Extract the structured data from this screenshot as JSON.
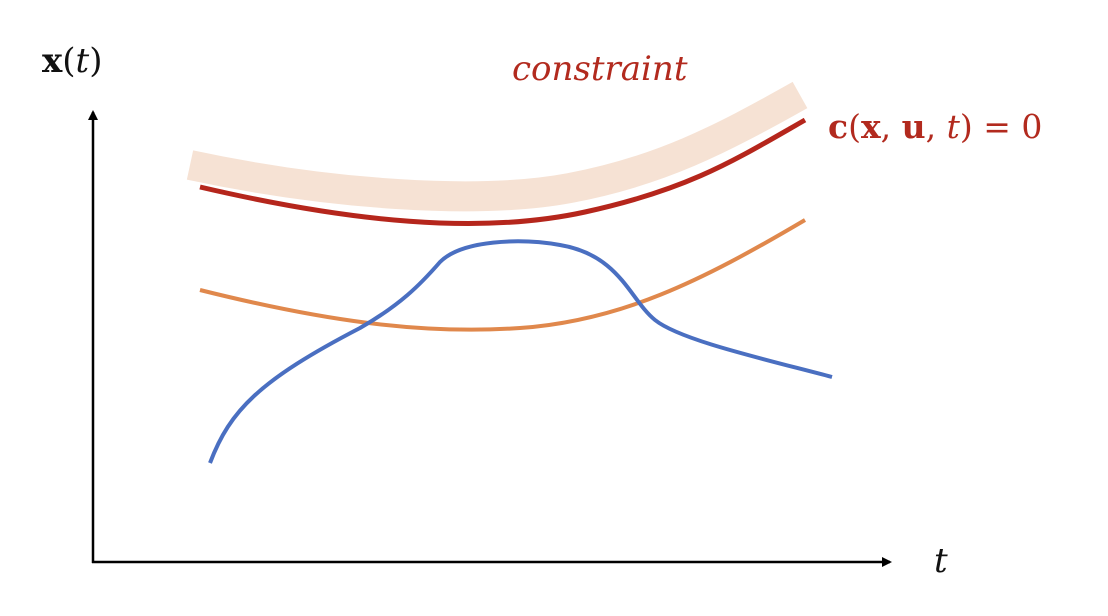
{
  "y_axis_label": [
    "x",
    "(",
    "t",
    ")"
  ],
  "x_axis_label": "t",
  "constraint_label": "constraint",
  "constraint_equation": [
    "c",
    "(",
    "x",
    ", ",
    "u",
    ", ",
    "t",
    ") = 0"
  ]
}
